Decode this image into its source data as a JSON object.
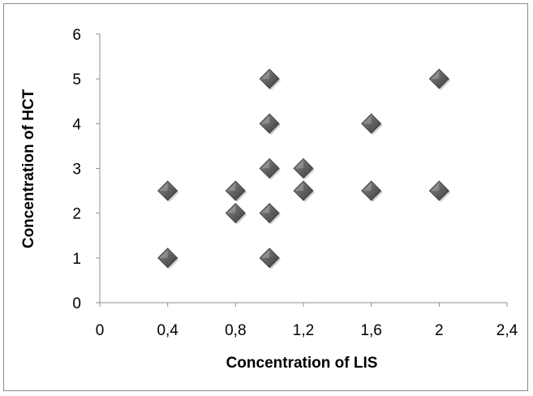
{
  "chart_data": {
    "type": "scatter",
    "title": "",
    "xlabel": "Concentration of LIS",
    "ylabel": "Concentration of HCT",
    "xlim": [
      0,
      2.4
    ],
    "ylim": [
      0,
      6
    ],
    "x_ticks": [
      0,
      0.4,
      0.8,
      1.2,
      1.6,
      2,
      2.4
    ],
    "x_tick_labels": [
      "0",
      "0,4",
      "0,8",
      "1,2",
      "1,6",
      "2",
      "2,4"
    ],
    "y_ticks": [
      0,
      1,
      2,
      3,
      4,
      5,
      6
    ],
    "y_tick_labels": [
      "0",
      "1",
      "2",
      "3",
      "4",
      "5",
      "6"
    ],
    "grid": false,
    "legend": "none",
    "marker": "diamond",
    "marker_color": "#5a5a5a",
    "series": [
      {
        "points": [
          {
            "x": 0.4,
            "y": 1
          },
          {
            "x": 0.4,
            "y": 2.5
          },
          {
            "x": 0.8,
            "y": 2
          },
          {
            "x": 0.8,
            "y": 2.5
          },
          {
            "x": 1.0,
            "y": 1
          },
          {
            "x": 1.0,
            "y": 2
          },
          {
            "x": 1.0,
            "y": 3
          },
          {
            "x": 1.0,
            "y": 4
          },
          {
            "x": 1.0,
            "y": 5
          },
          {
            "x": 1.2,
            "y": 2.5
          },
          {
            "x": 1.2,
            "y": 3
          },
          {
            "x": 1.6,
            "y": 2.5
          },
          {
            "x": 1.6,
            "y": 4
          },
          {
            "x": 2.0,
            "y": 2.5
          },
          {
            "x": 2.0,
            "y": 5
          }
        ]
      }
    ]
  }
}
